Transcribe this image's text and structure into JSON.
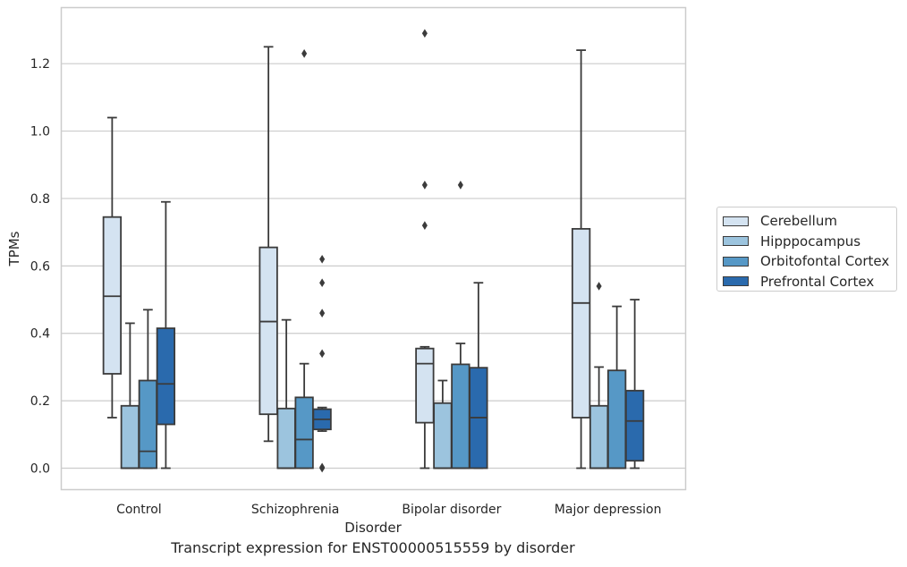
{
  "chart_data": {
    "type": "box",
    "xlabel": "Disorder",
    "ylabel": "TPMs",
    "caption": "Transcript expression for ENST00000515559 by disorder",
    "ylim": [
      -0.065,
      1.365
    ],
    "yticks": [
      "0.0",
      "0.2",
      "0.4",
      "0.6",
      "0.8",
      "1.0",
      "1.2"
    ],
    "grid": "horizontal",
    "legend_position": "right",
    "categories": [
      "Control",
      "Schizophrenia",
      "Bipolar disorder",
      "Major depression"
    ],
    "series": [
      {
        "name": "Cerebellum",
        "color": "#d4e3f1",
        "boxes": [
          {
            "whislo": 0.15,
            "q1": 0.28,
            "med": 0.51,
            "q3": 0.745,
            "whishi": 1.04,
            "fliers": []
          },
          {
            "whislo": 0.08,
            "q1": 0.16,
            "med": 0.435,
            "q3": 0.655,
            "whishi": 1.25,
            "fliers": []
          },
          {
            "whislo": 0.0,
            "q1": 0.135,
            "med": 0.31,
            "q3": 0.355,
            "whishi": 0.36,
            "fliers": [
              0.72,
              0.84,
              1.29
            ]
          },
          {
            "whislo": 0.0,
            "q1": 0.15,
            "med": 0.49,
            "q3": 0.71,
            "whishi": 1.24,
            "fliers": []
          }
        ]
      },
      {
        "name": "Hipppocampus",
        "color": "#9cc4de",
        "boxes": [
          {
            "whislo": 0.0,
            "q1": 0.0,
            "med": 0.0,
            "q3": 0.185,
            "whishi": 0.43,
            "fliers": []
          },
          {
            "whislo": 0.0,
            "q1": 0.0,
            "med": 0.0,
            "q3": 0.177,
            "whishi": 0.44,
            "fliers": []
          },
          {
            "whislo": 0.0,
            "q1": 0.0,
            "med": 0.0,
            "q3": 0.193,
            "whishi": 0.26,
            "fliers": []
          },
          {
            "whislo": 0.0,
            "q1": 0.0,
            "med": 0.0,
            "q3": 0.185,
            "whishi": 0.3,
            "fliers": [
              0.54
            ]
          }
        ]
      },
      {
        "name": "Orbitofontal Cortex",
        "color": "#5698c6",
        "boxes": [
          {
            "whislo": 0.0,
            "q1": 0.0,
            "med": 0.05,
            "q3": 0.26,
            "whishi": 0.47,
            "fliers": []
          },
          {
            "whislo": 0.0,
            "q1": 0.0,
            "med": 0.085,
            "q3": 0.21,
            "whishi": 0.31,
            "fliers": [
              1.23
            ]
          },
          {
            "whislo": 0.0,
            "q1": 0.0,
            "med": 0.0,
            "q3": 0.308,
            "whishi": 0.37,
            "fliers": [
              0.84
            ]
          },
          {
            "whislo": 0.0,
            "q1": 0.0,
            "med": 0.0,
            "q3": 0.29,
            "whishi": 0.48,
            "fliers": []
          }
        ]
      },
      {
        "name": "Prefrontal Cortex",
        "color": "#2a6aad",
        "boxes": [
          {
            "whislo": 0.0,
            "q1": 0.13,
            "med": 0.25,
            "q3": 0.415,
            "whishi": 0.79,
            "fliers": []
          },
          {
            "whislo": 0.11,
            "q1": 0.115,
            "med": 0.145,
            "q3": 0.175,
            "whishi": 0.18,
            "fliers": [
              0.0,
              0.003,
              0.34,
              0.46,
              0.55,
              0.62
            ]
          },
          {
            "whislo": 0.0,
            "q1": 0.0,
            "med": 0.15,
            "q3": 0.298,
            "whishi": 0.55,
            "fliers": []
          },
          {
            "whislo": 0.0,
            "q1": 0.022,
            "med": 0.14,
            "q3": 0.23,
            "whishi": 0.5,
            "fliers": []
          }
        ]
      }
    ]
  }
}
